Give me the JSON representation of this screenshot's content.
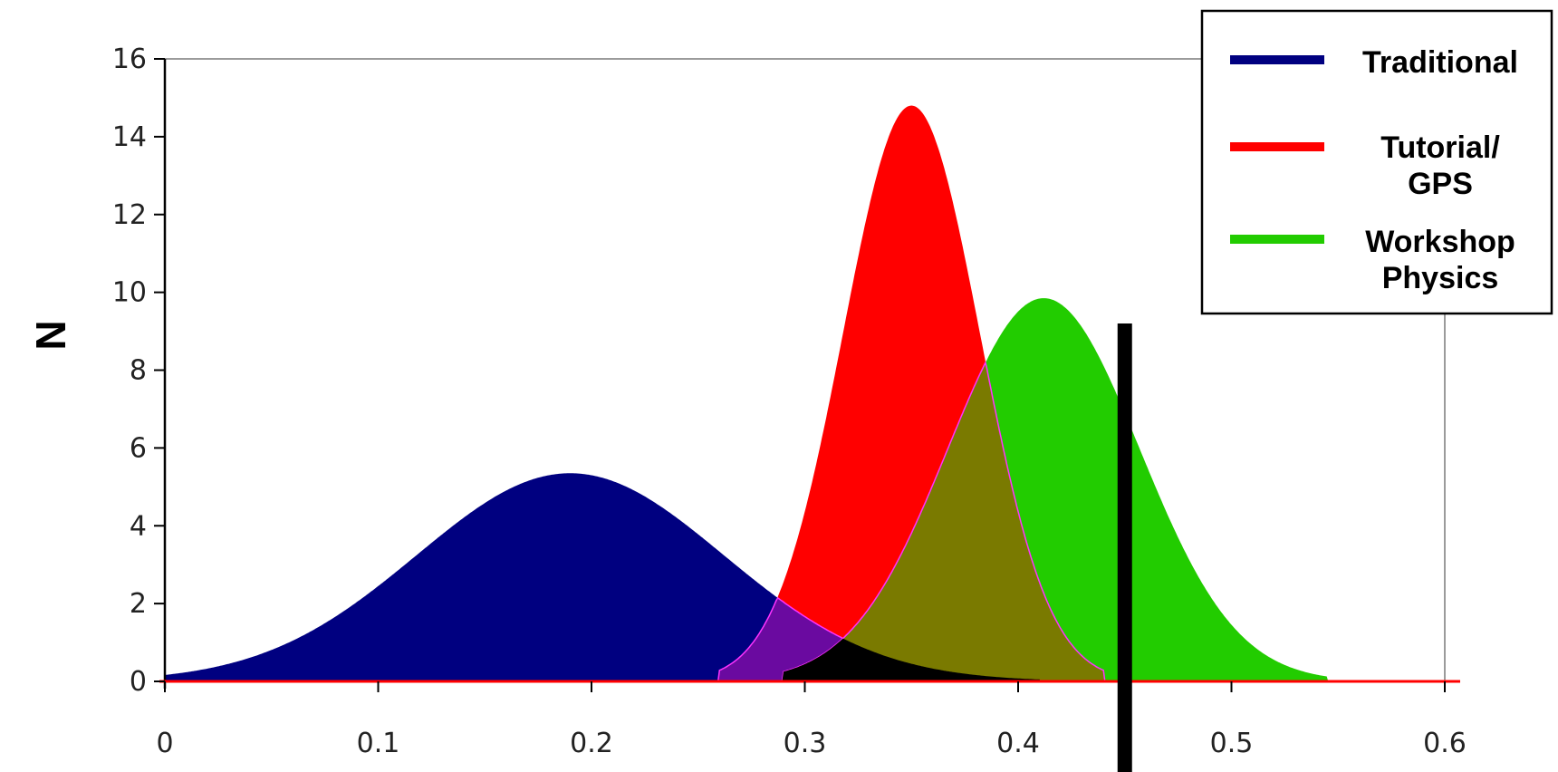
{
  "chart_data": {
    "type": "area",
    "title": "",
    "xlabel": "",
    "ylabel": "N",
    "xlim": [
      0,
      0.6
    ],
    "ylim": [
      0,
      16
    ],
    "x_ticks": [
      "0",
      "0.1",
      "0.2",
      "0.3",
      "0.4",
      "0.5",
      "0.6"
    ],
    "y_ticks": [
      "0",
      "2",
      "4",
      "6",
      "8",
      "10",
      "12",
      "14",
      "16"
    ],
    "grid": false,
    "legend_position": "top-right",
    "series": [
      {
        "name": "Traditional",
        "color": "#000080",
        "distribution": "normal",
        "mean": 0.19,
        "peak": 5.35,
        "sd": 0.072,
        "x_min": 0.0,
        "x_max": 0.41
      },
      {
        "name": "Tutorial/ GPS",
        "legend_lines": [
          "Tutorial/",
          "GPS"
        ],
        "color": "#ff0000",
        "distribution": "normal",
        "mean": 0.35,
        "peak": 14.8,
        "sd": 0.032,
        "x_min": 0.26,
        "x_max": 0.44
      },
      {
        "name": "Workshop Physics",
        "legend_lines": [
          "Workshop",
          "Physics"
        ],
        "color": "#22cc00",
        "distribution": "normal",
        "mean": 0.412,
        "peak": 9.85,
        "sd": 0.045,
        "x_min": 0.29,
        "x_max": 0.545
      }
    ],
    "overlap_colors": {
      "traditional_tutorial": "#6a0aa0",
      "tutorial_workshop": "#7a7a00",
      "all_three": "#000000"
    },
    "marker_line": {
      "x": 0.45,
      "color": "#000000"
    }
  }
}
